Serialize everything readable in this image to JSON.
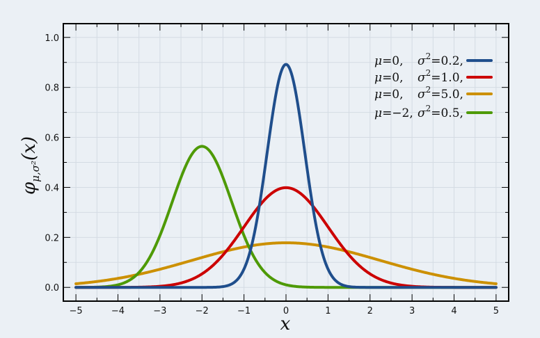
{
  "chart_data": {
    "type": "line",
    "title": "",
    "xlabel": "x",
    "ylabel": {
      "symbol": "φ",
      "subscript": "μ,σ²",
      "argument": "(x)"
    },
    "xlim": [
      -5.3,
      5.3
    ],
    "ylim": [
      -0.055,
      1.055
    ],
    "x_ticks": [
      -5,
      -4,
      -3,
      -2,
      -1,
      0,
      1,
      2,
      3,
      4,
      5
    ],
    "x_tick_labels": [
      "−5",
      "−4",
      "−3",
      "−2",
      "−1",
      "0",
      "1",
      "2",
      "3",
      "4",
      "5"
    ],
    "y_ticks": [
      0.0,
      0.2,
      0.4,
      0.6,
      0.8,
      1.0
    ],
    "y_tick_labels": [
      "0.0",
      "0.2",
      "0.4",
      "0.6",
      "0.8",
      "1.0"
    ],
    "grid": true,
    "legend_position": "top-right",
    "x_range": [
      -5,
      5
    ],
    "series": [
      {
        "name": "μ=0, σ²=0.2,",
        "mu": 0,
        "sigma2": 0.2,
        "mu_text": "0,",
        "sigma2_text": "0.2,",
        "color": "#1f4e8c"
      },
      {
        "name": "μ=0, σ²=1.0,",
        "mu": 0,
        "sigma2": 1.0,
        "mu_text": "0,",
        "sigma2_text": "1.0,",
        "color": "#cc0000"
      },
      {
        "name": "μ=0, σ²=5.0,",
        "mu": 0,
        "sigma2": 5.0,
        "mu_text": "0,",
        "sigma2_text": "5.0,",
        "color": "#cc9000"
      },
      {
        "name": "μ=−2, σ²=0.5,",
        "mu": -2,
        "sigma2": 0.5,
        "mu_text": "−2,",
        "sigma2_text": "0.5,",
        "color": "#4e9a06"
      }
    ]
  }
}
